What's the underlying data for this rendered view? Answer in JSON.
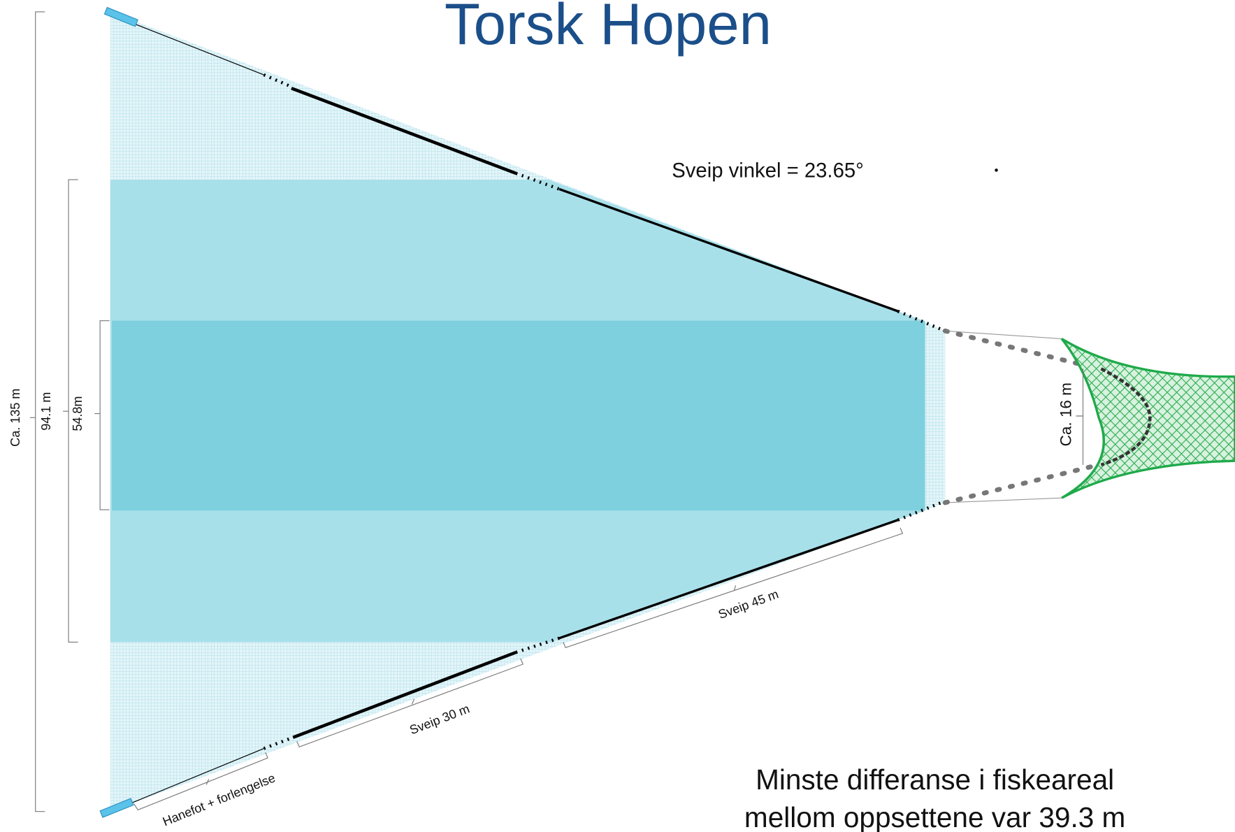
{
  "title": "Torsk Hopen",
  "sweep_angle": "Sveip vinkel = 23.65°",
  "dimensions": {
    "total_width": "Ca. 135 m",
    "middle_width": "94.1 m",
    "inner_width": "54.8m",
    "opening": "Ca. 16 m",
    "sweep_long": "Sveip 45 m",
    "sweep_short": "Sveip 30 m",
    "bridle": "Hanefot + forlengelse"
  },
  "note": [
    "Minste differanse i fiskeareal",
    "mellom oppsettene var 39.3 m"
  ]
}
